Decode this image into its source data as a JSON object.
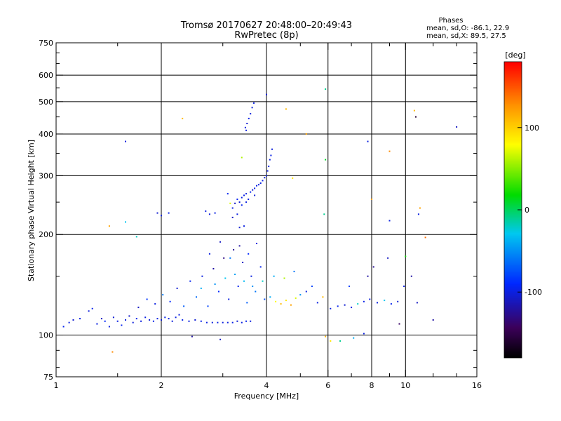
{
  "chart_data": {
    "type": "scatter",
    "title": "Tromsø 20170627 20:48:00–20:49:43",
    "subtitle": "RwPretec (8p)",
    "xlabel": "Frequency [MHz]",
    "ylabel": "Stationary phase Virtual Height [km]",
    "x_scale": "log",
    "y_scale": "log",
    "xlim": [
      1,
      16
    ],
    "ylim": [
      75,
      750
    ],
    "x_ticks": [
      1,
      2,
      4,
      6,
      8,
      10,
      16
    ],
    "y_ticks": [
      75,
      100,
      200,
      300,
      400,
      500,
      600,
      750
    ],
    "x_gridlines": [
      2,
      4,
      6,
      8,
      10
    ],
    "y_gridlines": [
      100,
      200,
      300,
      400,
      500,
      600
    ],
    "stats": {
      "header": "Phases",
      "line_o": "mean, sd,O: -86.1, 22.9",
      "line_x": "mean, sd,X:  89.5, 27.5"
    },
    "colorbar": {
      "label": "[deg]",
      "range": [
        -180,
        180
      ],
      "ticks": [
        100,
        0,
        -100
      ]
    },
    "points": [
      {
        "x": 1.05,
        "y": 106,
        "c": -95
      },
      {
        "x": 1.09,
        "y": 109,
        "c": -100
      },
      {
        "x": 1.12,
        "y": 111,
        "c": -105
      },
      {
        "x": 1.17,
        "y": 112,
        "c": -98
      },
      {
        "x": 1.24,
        "y": 118,
        "c": -102
      },
      {
        "x": 1.27,
        "y": 120,
        "c": -96
      },
      {
        "x": 1.31,
        "y": 108,
        "c": -100
      },
      {
        "x": 1.35,
        "y": 112,
        "c": -110
      },
      {
        "x": 1.38,
        "y": 110,
        "c": -92
      },
      {
        "x": 1.42,
        "y": 106,
        "c": -100
      },
      {
        "x": 1.46,
        "y": 113,
        "c": -104
      },
      {
        "x": 1.5,
        "y": 110,
        "c": -99
      },
      {
        "x": 1.54,
        "y": 107,
        "c": -95
      },
      {
        "x": 1.58,
        "y": 111,
        "c": -100
      },
      {
        "x": 1.62,
        "y": 114,
        "c": -108
      },
      {
        "x": 1.66,
        "y": 109,
        "c": -102
      },
      {
        "x": 1.7,
        "y": 112,
        "c": -97
      },
      {
        "x": 1.75,
        "y": 110,
        "c": -101
      },
      {
        "x": 1.8,
        "y": 113,
        "c": -99
      },
      {
        "x": 1.85,
        "y": 111,
        "c": -103
      },
      {
        "x": 1.9,
        "y": 110,
        "c": -98
      },
      {
        "x": 1.95,
        "y": 112,
        "c": -100
      },
      {
        "x": 2.0,
        "y": 111,
        "c": -105
      },
      {
        "x": 2.05,
        "y": 113,
        "c": -96
      },
      {
        "x": 2.1,
        "y": 112,
        "c": -100
      },
      {
        "x": 2.15,
        "y": 110,
        "c": -102
      },
      {
        "x": 2.2,
        "y": 113,
        "c": -99
      },
      {
        "x": 2.25,
        "y": 115,
        "c": -101
      },
      {
        "x": 2.3,
        "y": 111,
        "c": -97
      },
      {
        "x": 2.4,
        "y": 110,
        "c": -100
      },
      {
        "x": 2.5,
        "y": 111,
        "c": -104
      },
      {
        "x": 2.6,
        "y": 110,
        "c": -98
      },
      {
        "x": 2.7,
        "y": 109,
        "c": -100
      },
      {
        "x": 2.8,
        "y": 109,
        "c": -102
      },
      {
        "x": 2.9,
        "y": 109,
        "c": -99
      },
      {
        "x": 3.0,
        "y": 109,
        "c": -101
      },
      {
        "x": 3.1,
        "y": 109,
        "c": -100
      },
      {
        "x": 3.2,
        "y": 109,
        "c": -98
      },
      {
        "x": 3.3,
        "y": 110,
        "c": -103
      },
      {
        "x": 3.4,
        "y": 109,
        "c": -100
      },
      {
        "x": 3.5,
        "y": 110,
        "c": -97
      },
      {
        "x": 3.6,
        "y": 110,
        "c": -101
      },
      {
        "x": 1.72,
        "y": 121,
        "c": -110
      },
      {
        "x": 1.82,
        "y": 128,
        "c": -85
      },
      {
        "x": 1.92,
        "y": 124,
        "c": -100
      },
      {
        "x": 2.02,
        "y": 132,
        "c": -60
      },
      {
        "x": 2.12,
        "y": 126,
        "c": -90
      },
      {
        "x": 2.22,
        "y": 138,
        "c": -105
      },
      {
        "x": 2.32,
        "y": 122,
        "c": -70
      },
      {
        "x": 2.42,
        "y": 145,
        "c": -95
      },
      {
        "x": 2.52,
        "y": 130,
        "c": -65
      },
      {
        "x": 2.62,
        "y": 150,
        "c": -100
      },
      {
        "x": 2.72,
        "y": 122,
        "c": -80
      },
      {
        "x": 2.82,
        "y": 158,
        "c": -120
      },
      {
        "x": 2.92,
        "y": 135,
        "c": -90
      },
      {
        "x": 3.02,
        "y": 170,
        "c": -130
      },
      {
        "x": 3.12,
        "y": 128,
        "c": -100
      },
      {
        "x": 3.22,
        "y": 180,
        "c": -125
      },
      {
        "x": 3.32,
        "y": 140,
        "c": -95
      },
      {
        "x": 3.42,
        "y": 165,
        "c": -110
      },
      {
        "x": 3.52,
        "y": 125,
        "c": -70
      },
      {
        "x": 3.62,
        "y": 150,
        "c": -100
      },
      {
        "x": 3.72,
        "y": 135,
        "c": -60
      },
      {
        "x": 3.85,
        "y": 160,
        "c": -95
      },
      {
        "x": 3.95,
        "y": 128,
        "c": -75
      },
      {
        "x": 4.1,
        "y": 130,
        "c": -40
      },
      {
        "x": 4.25,
        "y": 126,
        "c": 80
      },
      {
        "x": 4.4,
        "y": 124,
        "c": 110
      },
      {
        "x": 4.55,
        "y": 127,
        "c": 90
      },
      {
        "x": 4.7,
        "y": 123,
        "c": 120
      },
      {
        "x": 4.85,
        "y": 129,
        "c": 70
      },
      {
        "x": 5.0,
        "y": 132,
        "c": -50
      },
      {
        "x": 5.2,
        "y": 135,
        "c": -100
      },
      {
        "x": 5.4,
        "y": 140,
        "c": -80
      },
      {
        "x": 5.6,
        "y": 125,
        "c": -100
      },
      {
        "x": 5.8,
        "y": 130,
        "c": 110
      },
      {
        "x": 2.75,
        "y": 175,
        "c": -100
      },
      {
        "x": 2.95,
        "y": 190,
        "c": -110
      },
      {
        "x": 3.15,
        "y": 170,
        "c": -60
      },
      {
        "x": 3.35,
        "y": 185,
        "c": -120
      },
      {
        "x": 3.55,
        "y": 175,
        "c": -90
      },
      {
        "x": 3.75,
        "y": 188,
        "c": -100
      },
      {
        "x": 2.6,
        "y": 138,
        "c": -40
      },
      {
        "x": 2.85,
        "y": 142,
        "c": -50
      },
      {
        "x": 3.05,
        "y": 148,
        "c": -30
      },
      {
        "x": 3.25,
        "y": 152,
        "c": -45
      },
      {
        "x": 3.45,
        "y": 145,
        "c": -35
      },
      {
        "x": 3.65,
        "y": 140,
        "c": -50
      },
      {
        "x": 3.9,
        "y": 145,
        "c": -20
      },
      {
        "x": 4.2,
        "y": 150,
        "c": -40
      },
      {
        "x": 4.5,
        "y": 148,
        "c": 60
      },
      {
        "x": 4.8,
        "y": 155,
        "c": -60
      },
      {
        "x": 3.2,
        "y": 240,
        "c": -100
      },
      {
        "x": 3.25,
        "y": 248,
        "c": -110
      },
      {
        "x": 3.3,
        "y": 255,
        "c": -95
      },
      {
        "x": 3.35,
        "y": 250,
        "c": -105
      },
      {
        "x": 3.4,
        "y": 258,
        "c": -100
      },
      {
        "x": 3.45,
        "y": 262,
        "c": -98
      },
      {
        "x": 3.5,
        "y": 265,
        "c": -102
      },
      {
        "x": 3.55,
        "y": 255,
        "c": -100
      },
      {
        "x": 3.6,
        "y": 268,
        "c": -96
      },
      {
        "x": 3.65,
        "y": 272,
        "c": -104
      },
      {
        "x": 3.7,
        "y": 275,
        "c": -100
      },
      {
        "x": 3.75,
        "y": 280,
        "c": -99
      },
      {
        "x": 3.8,
        "y": 282,
        "c": -101
      },
      {
        "x": 3.85,
        "y": 285,
        "c": -100
      },
      {
        "x": 3.9,
        "y": 290,
        "c": -98
      },
      {
        "x": 3.95,
        "y": 296,
        "c": -102
      },
      {
        "x": 4.0,
        "y": 300,
        "c": -100
      },
      {
        "x": 4.03,
        "y": 310,
        "c": -99
      },
      {
        "x": 4.06,
        "y": 320,
        "c": -101
      },
      {
        "x": 4.09,
        "y": 335,
        "c": -100
      },
      {
        "x": 4.12,
        "y": 345,
        "c": -98
      },
      {
        "x": 4.15,
        "y": 360,
        "c": -102
      },
      {
        "x": 3.4,
        "y": 245,
        "c": -96
      },
      {
        "x": 3.5,
        "y": 250,
        "c": -100
      },
      {
        "x": 3.7,
        "y": 262,
        "c": -104
      },
      {
        "x": 3.3,
        "y": 230,
        "c": -100
      },
      {
        "x": 3.2,
        "y": 225,
        "c": -110
      },
      {
        "x": 3.1,
        "y": 265,
        "c": -95
      },
      {
        "x": 3.35,
        "y": 210,
        "c": -105
      },
      {
        "x": 3.45,
        "y": 212,
        "c": -100
      },
      {
        "x": 3.48,
        "y": 418,
        "c": -100
      },
      {
        "x": 3.52,
        "y": 430,
        "c": -105
      },
      {
        "x": 3.56,
        "y": 445,
        "c": -98
      },
      {
        "x": 3.6,
        "y": 460,
        "c": -102
      },
      {
        "x": 3.64,
        "y": 480,
        "c": -100
      },
      {
        "x": 3.68,
        "y": 495,
        "c": -99
      },
      {
        "x": 3.5,
        "y": 410,
        "c": -101
      },
      {
        "x": 4.0,
        "y": 525,
        "c": -100
      },
      {
        "x": 1.58,
        "y": 380,
        "c": -100
      },
      {
        "x": 1.95,
        "y": 232,
        "c": -105
      },
      {
        "x": 2.0,
        "y": 228,
        "c": -100
      },
      {
        "x": 2.1,
        "y": 232,
        "c": -98
      },
      {
        "x": 2.68,
        "y": 235,
        "c": -100
      },
      {
        "x": 2.75,
        "y": 230,
        "c": -102
      },
      {
        "x": 2.85,
        "y": 232,
        "c": -100
      },
      {
        "x": 3.15,
        "y": 248,
        "c": 70
      },
      {
        "x": 3.4,
        "y": 340,
        "c": 60
      },
      {
        "x": 4.55,
        "y": 475,
        "c": 110
      },
      {
        "x": 4.75,
        "y": 295,
        "c": 90
      },
      {
        "x": 2.3,
        "y": 445,
        "c": 110
      },
      {
        "x": 1.42,
        "y": 212,
        "c": 120
      },
      {
        "x": 1.58,
        "y": 218,
        "c": -30
      },
      {
        "x": 1.7,
        "y": 197,
        "c": -20
      },
      {
        "x": 1.45,
        "y": 89,
        "c": 130
      },
      {
        "x": 2.45,
        "y": 99,
        "c": -120
      },
      {
        "x": 2.95,
        "y": 97,
        "c": -110
      },
      {
        "x": 5.9,
        "y": 99,
        "c": 110
      },
      {
        "x": 6.1,
        "y": 96,
        "c": 90
      },
      {
        "x": 6.5,
        "y": 96,
        "c": -10
      },
      {
        "x": 7.1,
        "y": 98,
        "c": -40
      },
      {
        "x": 7.6,
        "y": 101,
        "c": -100
      },
      {
        "x": 6.1,
        "y": 120,
        "c": -100
      },
      {
        "x": 6.4,
        "y": 122,
        "c": -95
      },
      {
        "x": 6.7,
        "y": 123,
        "c": -105
      },
      {
        "x": 7.0,
        "y": 121,
        "c": -100
      },
      {
        "x": 7.3,
        "y": 124,
        "c": -20
      },
      {
        "x": 7.6,
        "y": 126,
        "c": -98
      },
      {
        "x": 7.9,
        "y": 128,
        "c": -102
      },
      {
        "x": 8.3,
        "y": 125,
        "c": -100
      },
      {
        "x": 8.7,
        "y": 127,
        "c": -30
      },
      {
        "x": 9.1,
        "y": 124,
        "c": -96
      },
      {
        "x": 9.5,
        "y": 126,
        "c": -104
      },
      {
        "x": 6.9,
        "y": 140,
        "c": -80
      },
      {
        "x": 7.8,
        "y": 150,
        "c": -120
      },
      {
        "x": 8.1,
        "y": 160,
        "c": -125
      },
      {
        "x": 8.9,
        "y": 170,
        "c": -110
      },
      {
        "x": 9.9,
        "y": 140,
        "c": -100
      },
      {
        "x": 10.4,
        "y": 150,
        "c": -120
      },
      {
        "x": 10.8,
        "y": 125,
        "c": -110
      },
      {
        "x": 11.4,
        "y": 196,
        "c": 140
      },
      {
        "x": 10.6,
        "y": 470,
        "c": 110
      },
      {
        "x": 10.7,
        "y": 450,
        "c": -160
      },
      {
        "x": 14.0,
        "y": 420,
        "c": -110
      },
      {
        "x": 11.0,
        "y": 240,
        "c": 120
      },
      {
        "x": 10.9,
        "y": 230,
        "c": -100
      },
      {
        "x": 9.0,
        "y": 355,
        "c": 130
      },
      {
        "x": 5.9,
        "y": 545,
        "c": -10
      },
      {
        "x": 5.9,
        "y": 335,
        "c": 10
      },
      {
        "x": 7.8,
        "y": 380,
        "c": -100
      },
      {
        "x": 10.0,
        "y": 172,
        "c": 20
      },
      {
        "x": 12.0,
        "y": 111,
        "c": -120
      },
      {
        "x": 9.6,
        "y": 108,
        "c": -140
      },
      {
        "x": 5.2,
        "y": 400,
        "c": 120
      },
      {
        "x": 5.85,
        "y": 230,
        "c": -10
      },
      {
        "x": 8.0,
        "y": 255,
        "c": 120
      },
      {
        "x": 9.0,
        "y": 220,
        "c": -100
      }
    ]
  }
}
